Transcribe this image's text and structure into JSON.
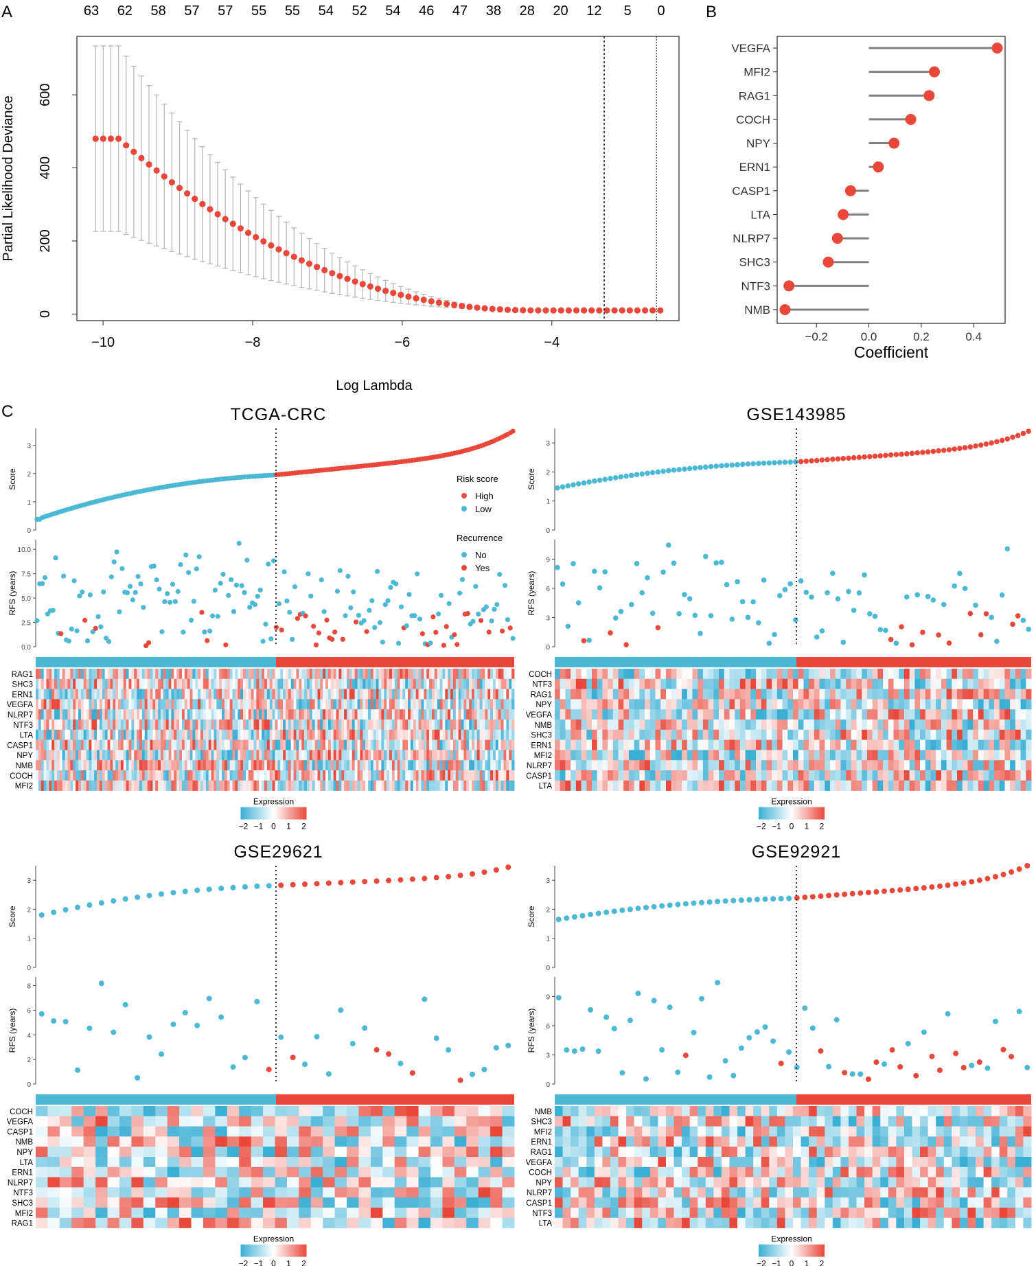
{
  "colors": {
    "red": "#e8473a",
    "blue": "#4bb8d4",
    "grey": "#b8b8b8",
    "segment": "#808080",
    "cool": "#3aaed4",
    "warm": "#e8473a"
  },
  "chart_data": [
    {
      "panel": "A",
      "type": "scatter",
      "xlabel": "Log Lambda",
      "ylabel": "Partial Likelihood Deviance",
      "xlim": [
        -10.35,
        -2.3
      ],
      "ylim": [
        -18,
        760
      ],
      "xticks": [
        -10,
        -8,
        -6,
        -4
      ],
      "xtick_labels": [
        "−10",
        "−8",
        "−6",
        "−4"
      ],
      "yticks": [
        0,
        200,
        400,
        600
      ],
      "yticks_labels": [
        "0",
        "200",
        "400",
        "600"
      ],
      "top_axis_labels": [
        "63",
        "62",
        "58",
        "57",
        "57",
        "55",
        "55",
        "54",
        "52",
        "54",
        "46",
        "47",
        "38",
        "28",
        "20",
        "12",
        "5",
        "0"
      ],
      "x_start": -10.1,
      "x_end": -2.55,
      "n_points": 75,
      "vlines": [
        -3.3,
        -2.6
      ],
      "description": "Cross-validated partial likelihood deviance with error bars across log lambda"
    },
    {
      "panel": "B",
      "type": "lollipop",
      "xlabel": "Coefficient",
      "xlim": [
        -0.35,
        0.52
      ],
      "xticks": [
        -0.2,
        0.0,
        0.2,
        0.4
      ],
      "xtick_labels": [
        "−0.2",
        "0.0",
        "0.2",
        "0.4"
      ],
      "categories": [
        "VEGFA",
        "MFI2",
        "RAG1",
        "COCH",
        "NPY",
        "ERN1",
        "CASP1",
        "LTA",
        "NLRP7",
        "SHC3",
        "NTF3",
        "NMB"
      ],
      "values": [
        0.49,
        0.25,
        0.23,
        0.16,
        0.096,
        0.036,
        -0.07,
        -0.098,
        -0.12,
        -0.155,
        -0.305,
        -0.32
      ]
    },
    {
      "panel": "C",
      "type": "risk_plots",
      "panel_label": "C",
      "legend": {
        "risk_title": "Risk score",
        "risk_high": "High",
        "risk_low": "Low",
        "rec_title": "Recurrence",
        "rec_no": "No",
        "rec_yes": "Yes"
      },
      "score_label": "Score",
      "rfs_label": "RFS (years)",
      "expression_label": "Expression",
      "expression_ticks": [
        "−2",
        "−1",
        "0",
        "1",
        "2"
      ],
      "cohorts": [
        {
          "title": "TCGA-CRC",
          "n": 180,
          "score_min": 0.38,
          "score_max": 3.5,
          "score_split": 1.95,
          "score_ticks": [
            "0",
            "1",
            "2",
            "3"
          ],
          "score_ylim": [
            0,
            3.6
          ],
          "rfs_ticks": [
            "0.0",
            "2.5",
            "5.0",
            "7.5",
            "10.0"
          ],
          "rfs_ylim": [
            0,
            11
          ],
          "rfs_tick_vals": [
            0,
            2.5,
            5,
            7.5,
            10
          ],
          "genes": [
            "RAG1",
            "SHC3",
            "ERN1",
            "VEGFA",
            "NLRP7",
            "NTF3",
            "LTA",
            "CASP1",
            "NPY",
            "NMB",
            "COCH",
            "MFI2"
          ],
          "seed": 11
        },
        {
          "title": "GSE143985",
          "n": 90,
          "score_min": 1.45,
          "score_max": 3.4,
          "score_split": 2.35,
          "score_ticks": [
            "0",
            "1",
            "2",
            "3"
          ],
          "score_ylim": [
            0,
            3.5
          ],
          "rfs_ticks": [
            "0",
            "3",
            "6",
            "9"
          ],
          "rfs_ylim": [
            0,
            11
          ],
          "rfs_tick_vals": [
            0,
            3,
            6,
            9
          ],
          "genes": [
            "COCH",
            "NTF3",
            "RAG1",
            "NPY",
            "VEGFA",
            "NMB",
            "SHC3",
            "ERN1",
            "MFI2",
            "NLRP7",
            "CASP1",
            "LTA"
          ],
          "seed": 29
        },
        {
          "title": "GSE29621",
          "n": 40,
          "score_min": 1.8,
          "score_max": 3.45,
          "score_split": 2.82,
          "score_ticks": [
            "0",
            "1",
            "2",
            "3"
          ],
          "score_ylim": [
            0,
            3.5
          ],
          "rfs_ticks": [
            "0",
            "2",
            "4",
            "6",
            "8"
          ],
          "rfs_ylim": [
            0,
            8.7
          ],
          "rfs_tick_vals": [
            0,
            2,
            4,
            6,
            8
          ],
          "genes": [
            "COCH",
            "VEGFA",
            "CASP1",
            "NMB",
            "NPY",
            "LTA",
            "ERN1",
            "NLRP7",
            "NTF3",
            "SHC3",
            "MFI2",
            "RAG1"
          ],
          "seed": 47
        },
        {
          "title": "GSE92921",
          "n": 60,
          "score_min": 1.65,
          "score_max": 3.5,
          "score_split": 2.38,
          "score_ticks": [
            "0",
            "1",
            "2",
            "3"
          ],
          "score_ylim": [
            0,
            3.5
          ],
          "rfs_ticks": [
            "0",
            "3",
            "6",
            "9"
          ],
          "rfs_ylim": [
            0,
            11
          ],
          "rfs_tick_vals": [
            0,
            3,
            6,
            9
          ],
          "genes": [
            "NMB",
            "SHC3",
            "MFI2",
            "ERN1",
            "RAG1",
            "VEGFA",
            "COCH",
            "NPY",
            "NLRP7",
            "CASP1",
            "NTF3",
            "LTA"
          ],
          "seed": 63
        }
      ]
    }
  ],
  "labels": {
    "A": "A",
    "B": "B",
    "C": "C"
  }
}
